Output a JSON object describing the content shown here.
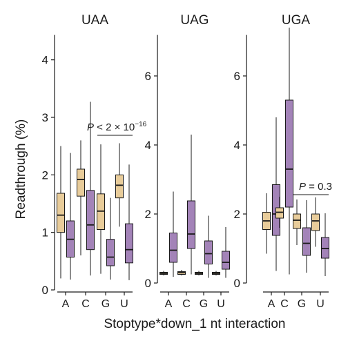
{
  "chart_data": {
    "type": "boxplot",
    "ylabel": "Readthrough (%)",
    "xlabel": "Stoptype*down_1 nt interaction",
    "categories": [
      "A",
      "C",
      "G",
      "U"
    ],
    "colors": {
      "tan": "#e8cc9a",
      "purple": "#a383b8",
      "line": "#1a1a1a"
    },
    "panels": [
      {
        "title": "UAA",
        "ylim": [
          0,
          4.5
        ],
        "yticks": [
          "0",
          "1",
          "2",
          "3",
          "4"
        ],
        "annotation": {
          "italic": "P",
          "text": " < 2 × 10",
          "sup": "−16",
          "between": [
            "G",
            "U"
          ]
        },
        "boxes": [
          {
            "category": "A",
            "fill": "tan",
            "min": 0.2,
            "q1": 1.0,
            "median": 1.3,
            "q3": 1.68,
            "max": 2.5
          },
          {
            "category": "A",
            "fill": "purple",
            "min": 0.18,
            "q1": 0.57,
            "median": 0.88,
            "q3": 1.2,
            "max": 2.38
          },
          {
            "category": "C",
            "fill": "tan",
            "min": 0.6,
            "q1": 1.63,
            "median": 1.92,
            "q3": 2.1,
            "max": 2.6
          },
          {
            "category": "C",
            "fill": "purple",
            "min": 0.25,
            "q1": 0.7,
            "median": 1.13,
            "q3": 1.73,
            "max": 3.27
          },
          {
            "category": "G",
            "fill": "tan",
            "min": 0.28,
            "q1": 1.05,
            "median": 1.37,
            "q3": 1.67,
            "max": 2.53
          },
          {
            "category": "G",
            "fill": "purple",
            "min": 0.18,
            "q1": 0.42,
            "median": 0.57,
            "q3": 0.88,
            "max": 1.6
          },
          {
            "category": "U",
            "fill": "tan",
            "min": 1.1,
            "q1": 1.6,
            "median": 1.82,
            "q3": 2.0,
            "max": 2.55
          },
          {
            "category": "U",
            "fill": "purple",
            "min": 0.17,
            "q1": 0.47,
            "median": 0.7,
            "q3": 1.15,
            "max": 2.18
          }
        ]
      },
      {
        "title": "UAG",
        "ylim": [
          -0.2,
          7.3
        ],
        "yticks": [
          "0",
          "2",
          "4",
          "6"
        ],
        "boxes": [
          {
            "category": "A",
            "fill": "tan",
            "min": 0.22,
            "q1": 0.25,
            "median": 0.28,
            "q3": 0.31,
            "max": 0.35
          },
          {
            "category": "A",
            "fill": "purple",
            "min": 0.18,
            "q1": 0.6,
            "median": 0.95,
            "q3": 1.45,
            "max": 2.65
          },
          {
            "category": "C",
            "fill": "tan",
            "min": 0.22,
            "q1": 0.25,
            "median": 0.3,
            "q3": 0.33,
            "max": 0.38
          },
          {
            "category": "C",
            "fill": "purple",
            "min": 0.25,
            "q1": 1.0,
            "median": 1.42,
            "q3": 2.38,
            "max": 4.3
          },
          {
            "category": "G",
            "fill": "tan",
            "min": 0.22,
            "q1": 0.25,
            "median": 0.28,
            "q3": 0.31,
            "max": 0.35
          },
          {
            "category": "G",
            "fill": "purple",
            "min": 0.15,
            "q1": 0.55,
            "median": 0.85,
            "q3": 1.22,
            "max": 1.95
          },
          {
            "category": "U",
            "fill": "tan",
            "min": 0.22,
            "q1": 0.25,
            "median": 0.28,
            "q3": 0.31,
            "max": 0.35
          },
          {
            "category": "U",
            "fill": "purple",
            "min": 0.15,
            "q1": 0.4,
            "median": 0.6,
            "q3": 0.92,
            "max": 1.62
          }
        ]
      },
      {
        "title": "UGA",
        "ylim": [
          -0.2,
          7.3
        ],
        "yticks": [
          "0",
          "2",
          "4",
          "6"
        ],
        "annotation": {
          "italic": "P",
          "text": " = 0.3",
          "between": [
            "G",
            "U"
          ]
        },
        "boxes": [
          {
            "category": "A",
            "fill": "tan",
            "min": 0.85,
            "q1": 1.55,
            "median": 1.8,
            "q3": 2.05,
            "max": 2.6
          },
          {
            "category": "A",
            "fill": "purple",
            "min": 0.35,
            "q1": 1.38,
            "median": 2.0,
            "q3": 2.85,
            "max": 4.8
          },
          {
            "category": "C",
            "fill": "tan",
            "min": 1.6,
            "q1": 1.88,
            "median": 2.05,
            "q3": 2.18,
            "max": 2.5
          },
          {
            "category": "C",
            "fill": "purple",
            "min": 0.25,
            "q1": 2.2,
            "median": 3.3,
            "q3": 5.3,
            "max": 7.4
          },
          {
            "category": "G",
            "fill": "tan",
            "min": 1.1,
            "q1": 1.58,
            "median": 1.82,
            "q3": 2.0,
            "max": 2.42
          },
          {
            "category": "G",
            "fill": "purple",
            "min": 0.3,
            "q1": 0.8,
            "median": 1.15,
            "q3": 1.6,
            "max": 2.4
          },
          {
            "category": "U",
            "fill": "tan",
            "min": 1.05,
            "q1": 1.52,
            "median": 1.8,
            "q3": 2.0,
            "max": 2.48
          },
          {
            "category": "U",
            "fill": "purple",
            "min": 0.2,
            "q1": 0.72,
            "median": 1.0,
            "q3": 1.32,
            "max": 2.02
          }
        ]
      }
    ]
  }
}
